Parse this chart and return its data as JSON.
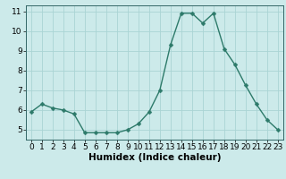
{
  "x": [
    0,
    1,
    2,
    3,
    4,
    5,
    6,
    7,
    8,
    9,
    10,
    11,
    12,
    13,
    14,
    15,
    16,
    17,
    18,
    19,
    20,
    21,
    22,
    23
  ],
  "y": [
    5.9,
    6.3,
    6.1,
    6.0,
    5.8,
    4.85,
    4.85,
    4.85,
    4.85,
    5.0,
    5.3,
    5.9,
    7.0,
    9.3,
    10.9,
    10.9,
    10.4,
    10.9,
    9.1,
    8.3,
    7.25,
    6.3,
    5.5,
    5.0
  ],
  "bg_color": "#cceaea",
  "grid_color": "#aad4d4",
  "line_color": "#2d7a6a",
  "marker_color": "#2d7a6a",
  "xlabel": "Humidex (Indice chaleur)",
  "xlim": [
    -0.5,
    23.5
  ],
  "ylim": [
    4.5,
    11.3
  ],
  "yticks": [
    5,
    6,
    7,
    8,
    9,
    10,
    11
  ],
  "xticks": [
    0,
    1,
    2,
    3,
    4,
    5,
    6,
    7,
    8,
    9,
    10,
    11,
    12,
    13,
    14,
    15,
    16,
    17,
    18,
    19,
    20,
    21,
    22,
    23
  ],
  "tick_fontsize": 6.5,
  "xlabel_fontsize": 7.5,
  "line_width": 1.0,
  "marker_size": 2.5
}
